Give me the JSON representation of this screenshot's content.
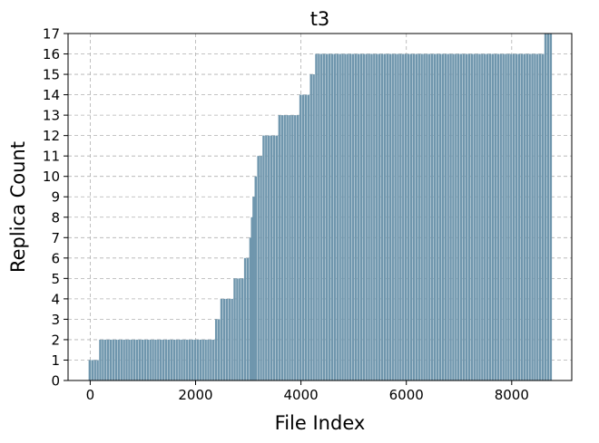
{
  "chart_data": {
    "type": "bar",
    "title": "t3",
    "xlabel": "File Index",
    "ylabel": "Replica Count",
    "xlim": [
      -420,
      9140
    ],
    "ylim": [
      0,
      17
    ],
    "x_ticks": [
      0,
      2000,
      4000,
      6000,
      8000
    ],
    "y_ticks": [
      0,
      1,
      2,
      3,
      4,
      5,
      6,
      7,
      8,
      9,
      10,
      11,
      12,
      13,
      14,
      15,
      16,
      17
    ],
    "grid": true,
    "bar_color": "#6f96ad",
    "bar_width_units": 60,
    "series": [
      {
        "steps": [
          {
            "x_start": 0,
            "x_end": 150,
            "value": 1
          },
          {
            "x_start": 200,
            "x_end": 2350,
            "value": 2
          },
          {
            "x_start": 2400,
            "x_end": 2450,
            "value": 3
          },
          {
            "x_start": 2500,
            "x_end": 2700,
            "value": 4
          },
          {
            "x_start": 2750,
            "x_end": 2900,
            "value": 5
          },
          {
            "x_start": 2950,
            "x_end": 3000,
            "value": 6
          },
          {
            "x_start": 3050,
            "x_end": 3050,
            "value": 7
          },
          {
            "x_start": 3080,
            "x_end": 3080,
            "value": 8
          },
          {
            "x_start": 3110,
            "x_end": 3110,
            "value": 9
          },
          {
            "x_start": 3150,
            "x_end": 3150,
            "value": 10
          },
          {
            "x_start": 3200,
            "x_end": 3250,
            "value": 11
          },
          {
            "x_start": 3300,
            "x_end": 3550,
            "value": 12
          },
          {
            "x_start": 3600,
            "x_end": 3950,
            "value": 13
          },
          {
            "x_start": 4000,
            "x_end": 4150,
            "value": 14
          },
          {
            "x_start": 4200,
            "x_end": 4250,
            "value": 15
          },
          {
            "x_start": 4300,
            "x_end": 8600,
            "value": 16
          },
          {
            "x_start": 8650,
            "x_end": 8750,
            "value": 17
          }
        ],
        "step_spacing": 50
      }
    ]
  }
}
